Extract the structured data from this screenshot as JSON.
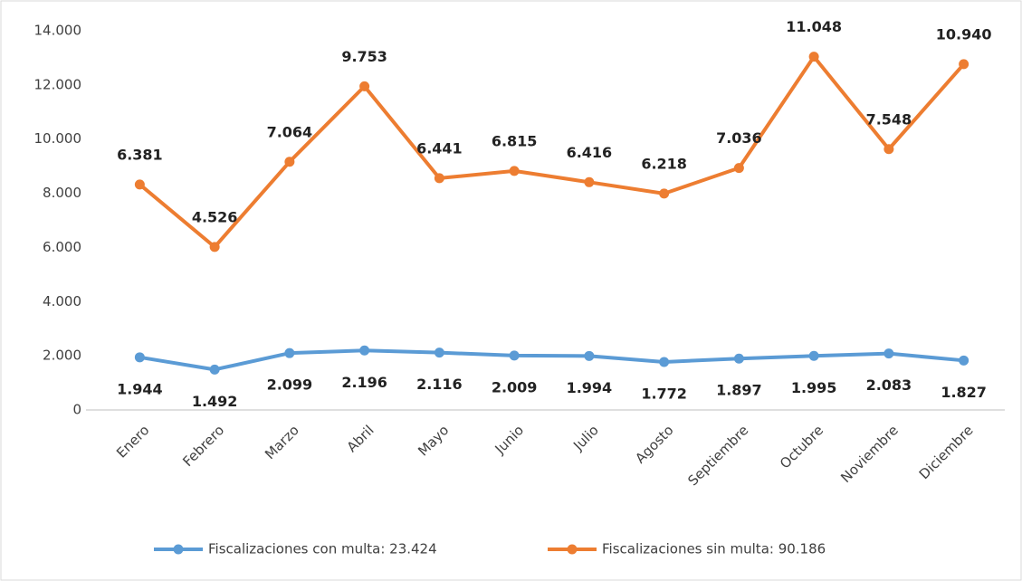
{
  "chart_data": {
    "type": "line",
    "stacked": true,
    "categories": [
      "Enero",
      "Febrero",
      "Marzo",
      "Abril",
      "Mayo",
      "Junio",
      "Julio",
      "Agosto",
      "Septiembre",
      "Octubre",
      "Noviembre",
      "Diciembre"
    ],
    "series": [
      {
        "name": "Fiscalizaciones con multa: 23.424",
        "color": "#5b9bd5",
        "values": [
          1944,
          1492,
          2099,
          2196,
          2116,
          2009,
          1994,
          1772,
          1897,
          1995,
          2083,
          1827
        ],
        "value_labels": [
          "1.944",
          "1.492",
          "2.099",
          "2.196",
          "2.116",
          "2.009",
          "1.994",
          "1.772",
          "1.897",
          "1.995",
          "2.083",
          "1.827"
        ]
      },
      {
        "name": "Fiscalizaciones sin multa: 90.186",
        "color": "#ed7d31",
        "values": [
          6381,
          4526,
          7064,
          9753,
          6441,
          6815,
          6416,
          6218,
          7036,
          11048,
          7548,
          10940
        ],
        "value_labels": [
          "6.381",
          "4.526",
          "7.064",
          "9.753",
          "6.441",
          "6.815",
          "6.416",
          "6.218",
          "7.036",
          "11.048",
          "7.548",
          "10.940"
        ]
      }
    ],
    "ylim": [
      0,
      14000
    ],
    "yticks": [
      0,
      {
        "value": 2000,
        "label": "2.000"
      },
      {
        "value": 4000,
        "label": "4.000"
      },
      {
        "value": 6000,
        "label": "6.000"
      },
      {
        "value": 8000,
        "label": "8.000"
      },
      {
        "value": 10000,
        "label": "10.000"
      },
      {
        "value": 12000,
        "label": "12.000"
      },
      {
        "value": 14000,
        "label": "14.000"
      }
    ],
    "grid": false,
    "legend": "bottom"
  }
}
